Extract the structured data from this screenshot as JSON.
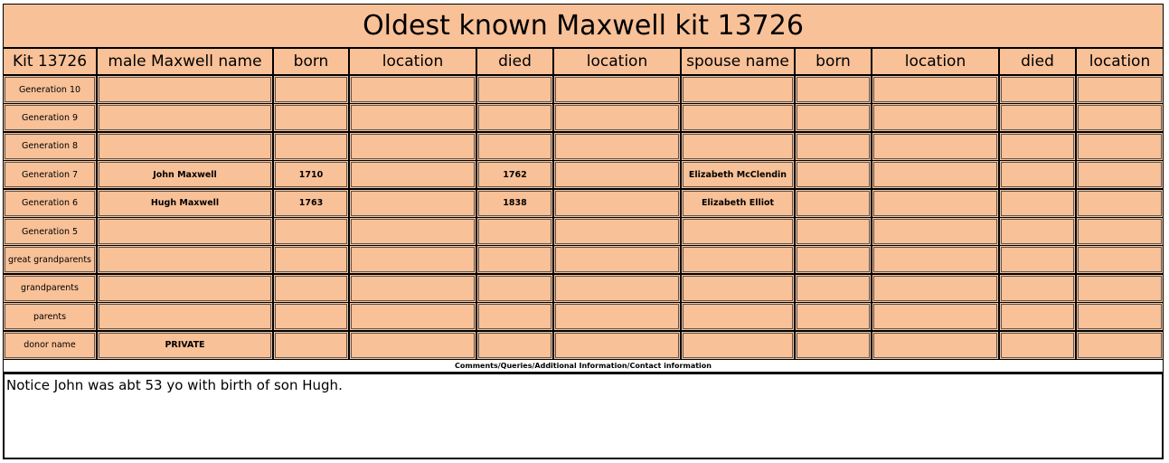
{
  "title": "Oldest known Maxwell kit 13726",
  "headers": [
    "Kit 13726",
    "male Maxwell name",
    "born",
    "location",
    "died",
    "location",
    "spouse name",
    "born",
    "location",
    "died",
    "location"
  ],
  "rows": [
    {
      "generation": "Generation 10"
    },
    {
      "generation": "Generation 9"
    },
    {
      "generation": "Generation 8"
    },
    {
      "generation": "Generation 7",
      "name": "John Maxwell",
      "born": 1710,
      "died": 1762,
      "spouse": "Elizabeth McClendin"
    },
    {
      "generation": "Generation 6",
      "name": "Hugh Maxwell",
      "born": 1763,
      "died": 1838,
      "spouse": "Elizabeth Elliot"
    },
    {
      "generation": "Generation 5"
    },
    {
      "generation": "great grandparents"
    },
    {
      "generation": "grandparents"
    },
    {
      "generation": "parents"
    },
    {
      "generation": "donor name",
      "name": "PRIVATE"
    }
  ],
  "comments_label": "Comments/Queries/Additional  Information/Contact information",
  "comments": "Notice John was abt 53 yo with birth of son Hugh."
}
